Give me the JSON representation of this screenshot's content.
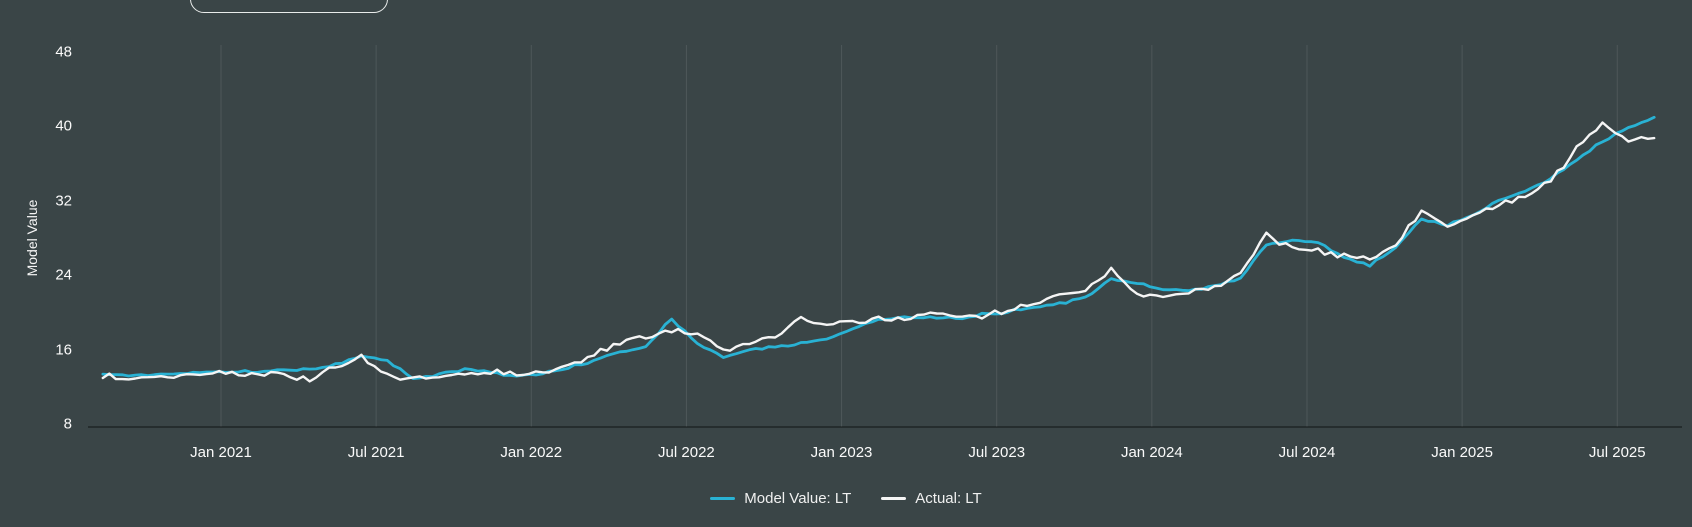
{
  "top_control": {
    "label": ""
  },
  "chart_data": {
    "type": "line",
    "title": "",
    "xlabel": "",
    "ylabel": "Model Value",
    "ylim": [
      8,
      48
    ],
    "y_ticks": [
      48,
      40,
      32,
      24,
      16,
      8
    ],
    "x_tick_labels": [
      "Jan 2021",
      "Jul 2021",
      "Jan 2022",
      "Jul 2022",
      "Jan 2023",
      "Jul 2023",
      "Jan 2024",
      "Jul 2024",
      "Jan 2025",
      "Jul 2025"
    ],
    "x_range": [
      "2020-08",
      "2025-08"
    ],
    "grid": "vertical-only",
    "legend_position": "bottom-center",
    "background_color": "#3a4547",
    "gridline_color": "rgba(255,255,255,0.10)",
    "axisline_color": "rgba(0,0,0,0.35)",
    "months": [
      "2020-08",
      "2020-09",
      "2020-10",
      "2020-11",
      "2020-12",
      "2021-01",
      "2021-02",
      "2021-03",
      "2021-04",
      "2021-05",
      "2021-06",
      "2021-07",
      "2021-08",
      "2021-09",
      "2021-10",
      "2021-11",
      "2021-12",
      "2022-01",
      "2022-02",
      "2022-03",
      "2022-04",
      "2022-05",
      "2022-06",
      "2022-07",
      "2022-08",
      "2022-09",
      "2022-10",
      "2022-11",
      "2022-12",
      "2023-01",
      "2023-02",
      "2023-03",
      "2023-04",
      "2023-05",
      "2023-06",
      "2023-07",
      "2023-08",
      "2023-09",
      "2023-10",
      "2023-11",
      "2023-12",
      "2024-01",
      "2024-02",
      "2024-03",
      "2024-04",
      "2024-05",
      "2024-06",
      "2024-07",
      "2024-08",
      "2024-09",
      "2024-10",
      "2024-11",
      "2024-12",
      "2025-01",
      "2025-02",
      "2025-03",
      "2025-04",
      "2025-05",
      "2025-06",
      "2025-07",
      "2025-08"
    ],
    "series": [
      {
        "name": "Model Value: LT",
        "color": "#29b2d4",
        "values": [
          13.3,
          13.2,
          13.3,
          13.5,
          13.6,
          13.6,
          13.7,
          13.8,
          13.8,
          14.4,
          15.3,
          14.8,
          12.9,
          13.3,
          13.9,
          13.6,
          13.1,
          13.4,
          14.0,
          14.9,
          15.7,
          16.4,
          19.3,
          16.6,
          15.2,
          15.9,
          16.3,
          16.7,
          17.1,
          18.3,
          19.2,
          19.4,
          19.5,
          19.3,
          19.8,
          20.1,
          20.6,
          20.9,
          21.6,
          23.6,
          23.1,
          22.5,
          22.4,
          22.8,
          23.6,
          27.3,
          27.8,
          27.5,
          25.8,
          25.1,
          27.0,
          30.0,
          29.4,
          30.4,
          32.0,
          33.0,
          34.4,
          36.4,
          38.4,
          39.9,
          40.9
        ]
      },
      {
        "name": "Actual: LT",
        "color": "#f5f5f5",
        "values": [
          13.1,
          12.9,
          13.1,
          13.2,
          13.4,
          13.4,
          13.5,
          13.4,
          12.6,
          14.1,
          15.2,
          13.4,
          12.8,
          13.0,
          13.4,
          13.7,
          13.3,
          13.6,
          14.3,
          15.4,
          16.8,
          17.3,
          18.1,
          17.8,
          15.9,
          16.6,
          17.5,
          19.2,
          18.9,
          18.8,
          19.3,
          19.2,
          19.9,
          19.5,
          19.7,
          20.2,
          20.9,
          21.8,
          22.6,
          24.7,
          21.9,
          21.8,
          22.2,
          22.6,
          24.2,
          28.2,
          26.9,
          26.7,
          26.1,
          25.8,
          27.3,
          31.0,
          29.1,
          30.3,
          31.7,
          32.4,
          34.2,
          37.6,
          40.2,
          38.4,
          39.0
        ]
      }
    ]
  }
}
